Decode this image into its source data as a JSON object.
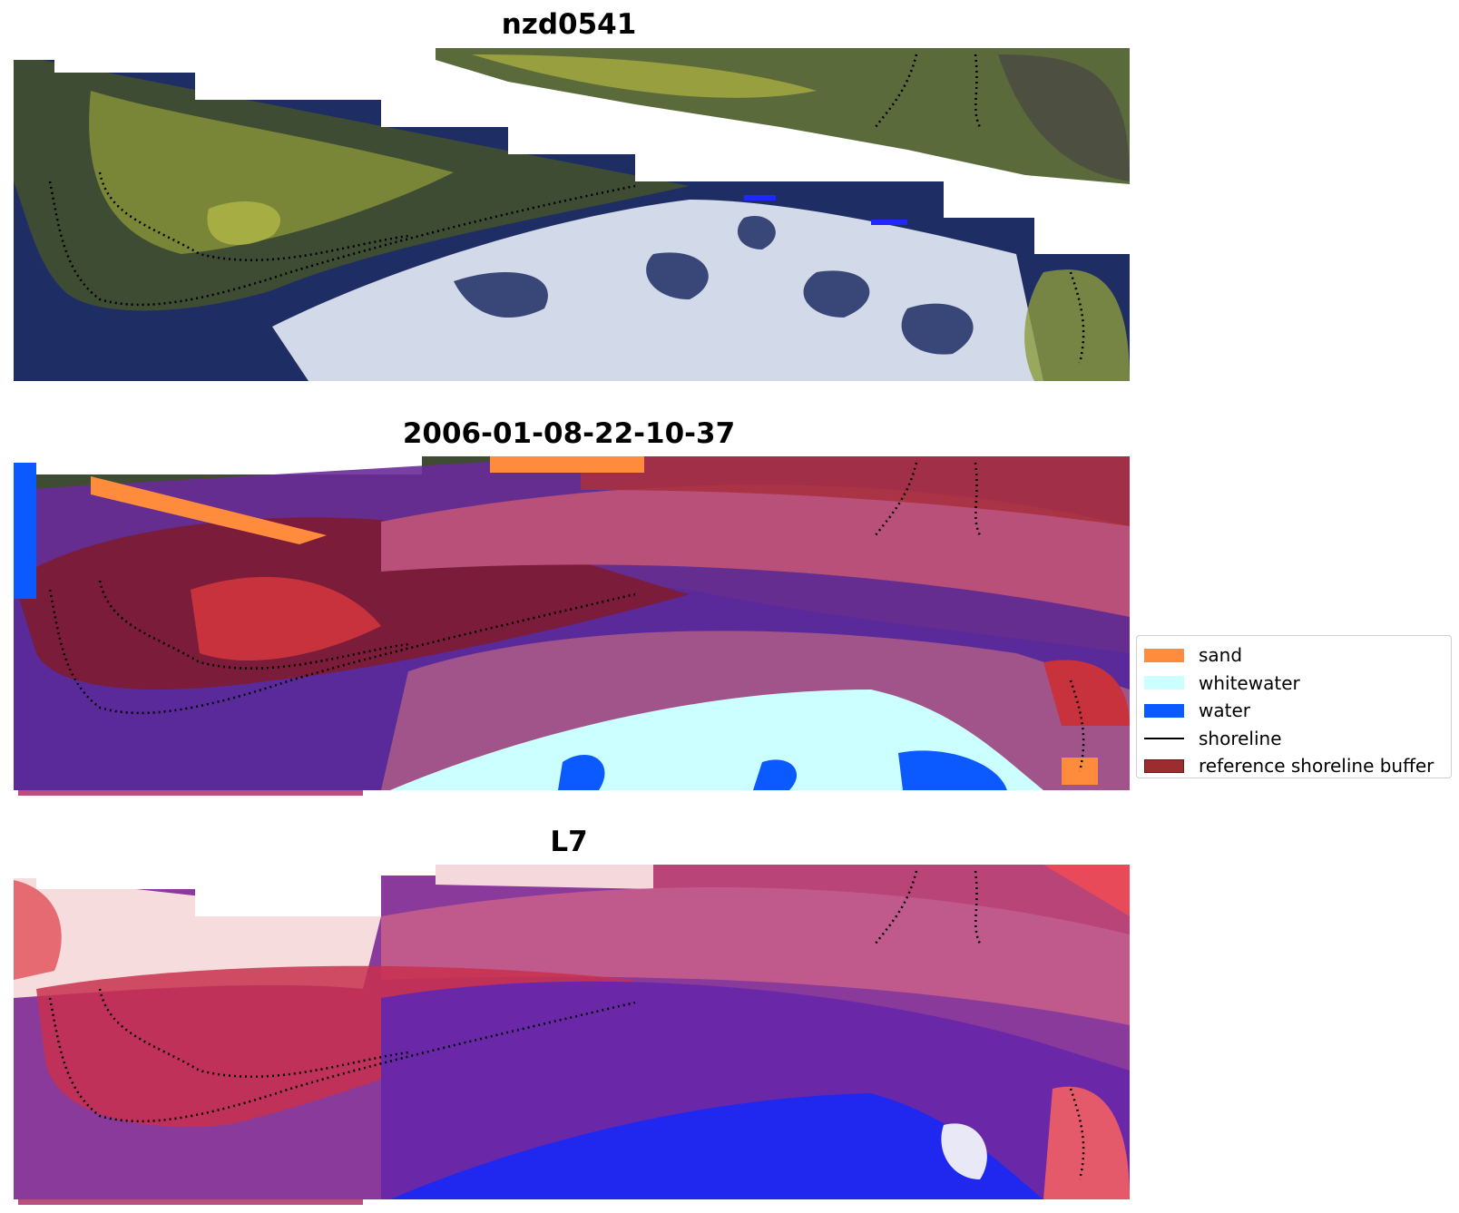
{
  "panels": [
    {
      "title": "nzd0541"
    },
    {
      "title": "2006-01-08-22-10-37"
    },
    {
      "title": "L7"
    }
  ],
  "legend": {
    "items": [
      {
        "label": "sand",
        "kind": "patch",
        "color": "#ff8c3c"
      },
      {
        "label": "whitewater",
        "kind": "patch",
        "color": "#ccffff"
      },
      {
        "label": "water",
        "kind": "patch",
        "color": "#0a5aff"
      },
      {
        "label": "shoreline",
        "kind": "line",
        "color": "#000000"
      },
      {
        "label": "reference shoreline buffer",
        "kind": "patch",
        "color": "#9b2d30"
      }
    ]
  },
  "colors": {
    "land": "#4a5a3a",
    "vegetation": "#a6a840",
    "ocean": "#1e2d64",
    "surf": "#e6ecf6",
    "buffer_overlay": "#b8507a",
    "buffer_dark": "#7a1c3a",
    "index_red": "#d21e3c",
    "index_blue": "#1e28ff",
    "index_purple": "#6a2a9a"
  }
}
